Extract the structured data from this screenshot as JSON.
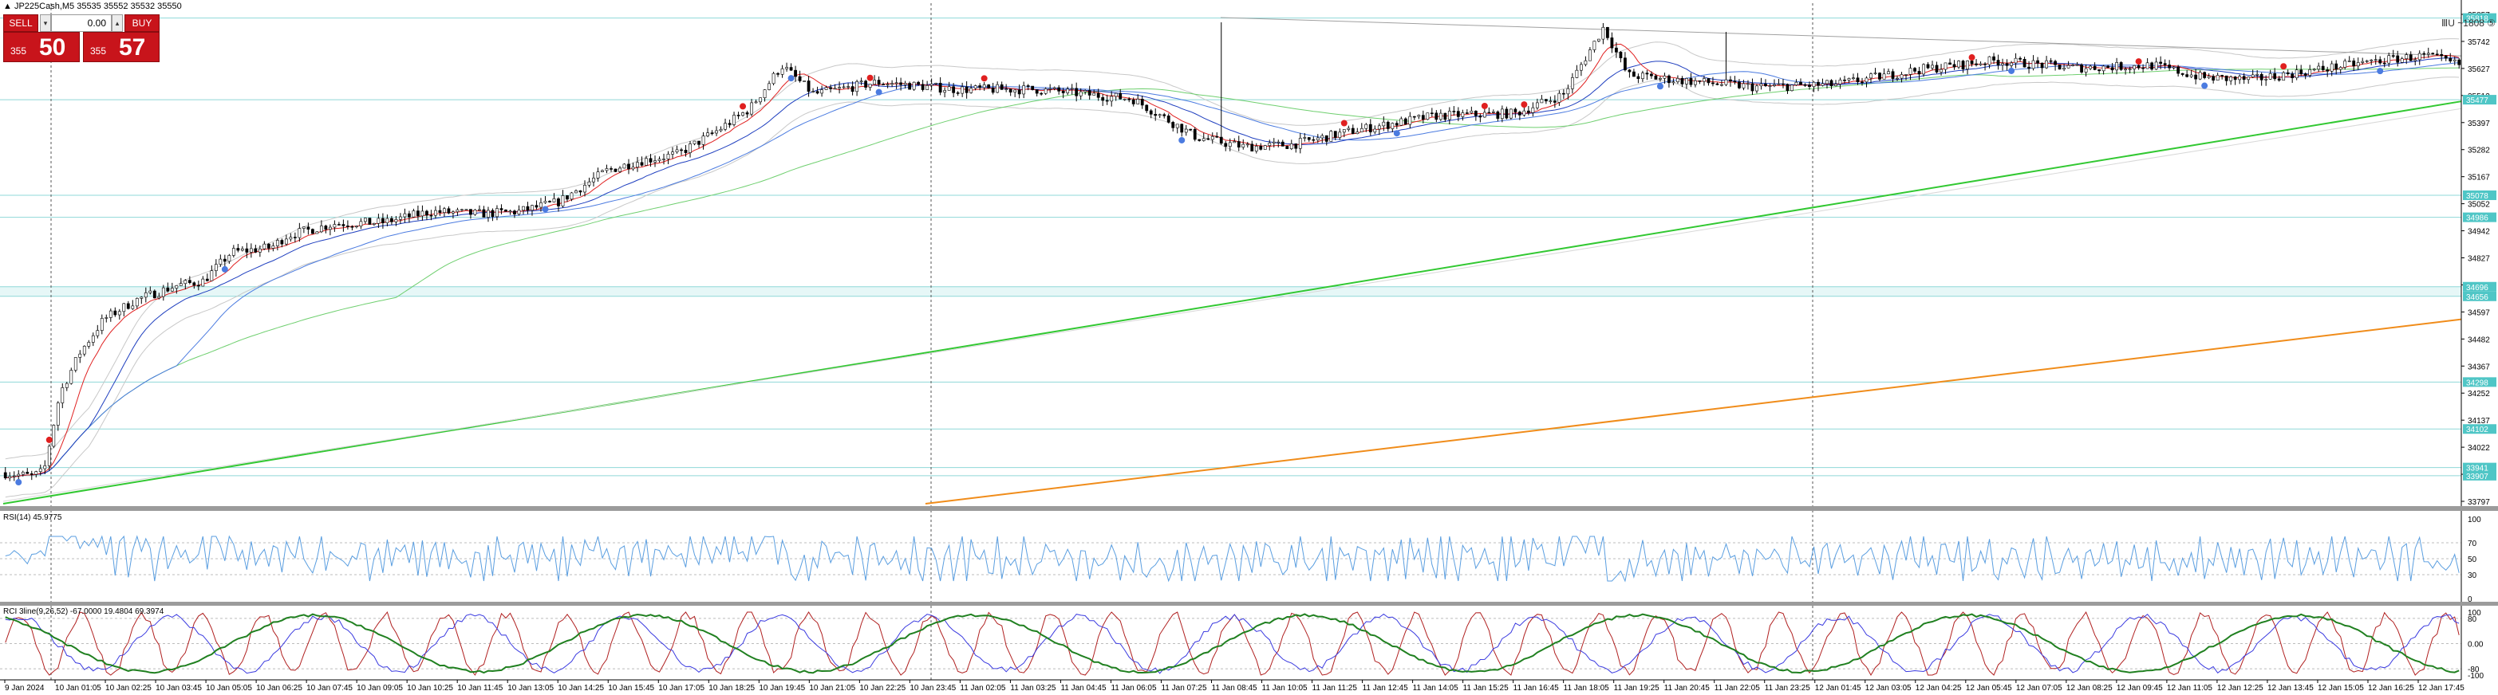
{
  "header": {
    "symbol_line": "▲ JP225Cash,M5  35535 35552 35532 35550",
    "right_readout": "ⅢU  ~1808  ⑤"
  },
  "trade_panel": {
    "sell_label": "SELL",
    "buy_label": "BUY",
    "lot_value": "0.00",
    "lot_down_glyph": "▾",
    "lot_up_glyph": "▴",
    "bid_small": "355",
    "bid_big": "50",
    "ask_small": "355",
    "ask_big": "57"
  },
  "colors": {
    "candle": "#000000",
    "bb": "#c8c8c8",
    "ma_fast": "#e02020",
    "ma_mid": "#1f3fbf",
    "ma_slow": "#4b7be0",
    "ma_trend": "#6fcf6f",
    "ma_long": "#32c832",
    "ma_longest": "#f08c1a",
    "level_line": "#8fd8d8",
    "level_tag": "#4fc6c6",
    "rsi_line": "#5a9ee0",
    "rci_short": "#b02020",
    "rci_mid": "#3a3ae0",
    "rci_long": "#208020"
  },
  "price_axis": {
    "labels": [
      "35857",
      "35742",
      "35627",
      "35512",
      "35397",
      "35282",
      "35167",
      "35052",
      "34942",
      "34827",
      "34712",
      "34597",
      "34482",
      "34367",
      "34252",
      "34137",
      "34022",
      "33907",
      "33797"
    ],
    "tags": [
      "35818",
      "35477",
      "35078",
      "34986",
      "34696",
      "34656",
      "34298",
      "34102",
      "33941",
      "33907"
    ]
  },
  "time_axis": {
    "labels": [
      "9 Jan 2024",
      "10 Jan 01:05",
      "10 Jan 02:25",
      "10 Jan 03:45",
      "10 Jan 05:05",
      "10 Jan 06:25",
      "10 Jan 07:45",
      "10 Jan 09:05",
      "10 Jan 10:25",
      "10 Jan 11:45",
      "10 Jan 13:05",
      "10 Jan 14:25",
      "10 Jan 15:45",
      "10 Jan 17:05",
      "10 Jan 18:25",
      "10 Jan 19:45",
      "10 Jan 21:05",
      "10 Jan 22:25",
      "10 Jan 23:45",
      "11 Jan 02:05",
      "11 Jan 03:25",
      "11 Jan 04:45",
      "11 Jan 06:05",
      "11 Jan 07:25",
      "11 Jan 08:45",
      "11 Jan 10:05",
      "11 Jan 11:25",
      "11 Jan 12:45",
      "11 Jan 14:05",
      "11 Jan 15:25",
      "11 Jan 16:45",
      "11 Jan 18:05",
      "11 Jan 19:25",
      "11 Jan 20:45",
      "11 Jan 22:05",
      "11 Jan 23:25",
      "12 Jan 01:45",
      "12 Jan 03:05",
      "12 Jan 04:25",
      "12 Jan 05:45",
      "12 Jan 07:05",
      "12 Jan 08:25",
      "12 Jan 09:45",
      "12 Jan 11:05",
      "12 Jan 12:25",
      "12 Jan 13:45",
      "12 Jan 15:05",
      "12 Jan 16:25",
      "12 Jan 17:45"
    ]
  },
  "rsi": {
    "label": "RSI(14) 45.9775",
    "scale": [
      "100",
      "70",
      "50",
      "30",
      "0"
    ]
  },
  "rci": {
    "label": "RCI 3line(9,26,52) -67.0000 19.4804 69.3974",
    "scale": [
      "100",
      "80",
      "0.00",
      "-80",
      "-100"
    ]
  }
}
